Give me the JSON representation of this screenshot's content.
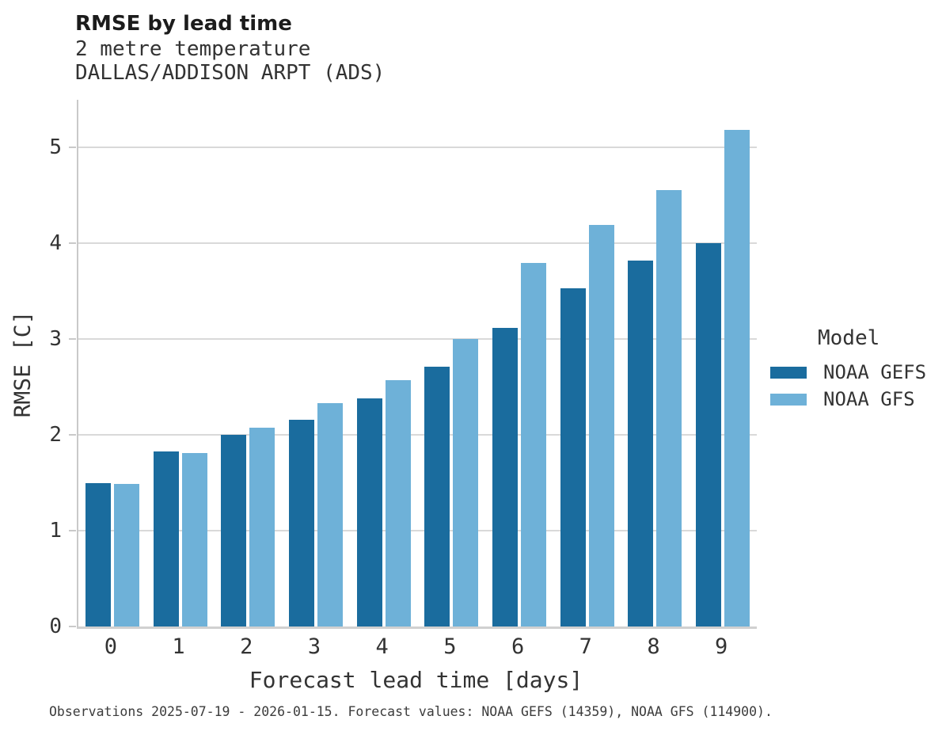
{
  "header": {
    "title": "RMSE by lead time",
    "subtitle1": "2 metre temperature",
    "subtitle2": "DALLAS/ADDISON ARPT (ADS)"
  },
  "legend": {
    "title": "Model"
  },
  "footer": {
    "caption": "Observations 2025-07-19 - 2026-01-15. Forecast values: NOAA GEFS (14359), NOAA GFS (114900)."
  },
  "colors": {
    "gefs_blue": "#1a6c9e",
    "gfs_light_blue": "#6eb1d8",
    "gridline_gray": "#d9d9d9",
    "spine_gray": "#c9c9c9",
    "text_dark": "#333333"
  },
  "chart_data": {
    "type": "bar",
    "title": "RMSE by lead time",
    "subtitle": [
      "2 metre temperature",
      "DALLAS/ADDISON ARPT (ADS)"
    ],
    "categories": [
      "0",
      "1",
      "2",
      "3",
      "4",
      "5",
      "6",
      "7",
      "8",
      "9"
    ],
    "series": [
      {
        "name": "NOAA GEFS",
        "color": "#1a6c9e",
        "values": [
          1.5,
          1.83,
          2.0,
          2.16,
          2.38,
          2.71,
          3.12,
          3.53,
          3.82,
          4.0
        ]
      },
      {
        "name": "NOAA GFS",
        "color": "#6eb1d8",
        "values": [
          1.49,
          1.81,
          2.08,
          2.33,
          2.57,
          3.0,
          3.8,
          4.19,
          4.56,
          5.19
        ]
      }
    ],
    "xlabel": "Forecast lead time [days]",
    "ylabel": "RMSE [C]",
    "ylim": [
      0,
      5.5
    ],
    "yticks": [
      0,
      1,
      2,
      3,
      4,
      5
    ],
    "grid": "horizontal",
    "legend_title": "Model",
    "legend_position": "right",
    "caption": "Observations 2025-07-19 - 2026-01-15. Forecast values: NOAA GEFS (14359), NOAA GFS (114900)."
  }
}
